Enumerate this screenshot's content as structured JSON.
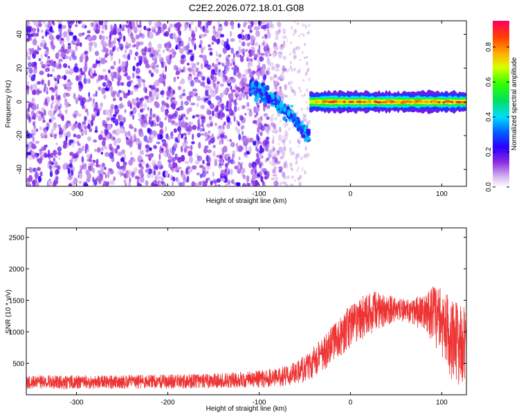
{
  "figure_title": "C2E2.2026.072.18.01.G08",
  "colors": {
    "snr_line": "#ee3333",
    "axis": "#000000",
    "background": "#ffffff"
  },
  "chart_data": [
    {
      "type": "heatmap",
      "title": "C2E2.2026.072.18.01.G08",
      "xlabel": "Height of straight line (km)",
      "ylabel": "Frequency (Hz)",
      "xlim": [
        -355,
        127
      ],
      "ylim": [
        -50,
        48
      ],
      "xticks": [
        -300,
        -200,
        -100,
        0,
        100
      ],
      "xtick_labels": [
        "-300",
        "-200",
        "-100",
        "0",
        "100"
      ],
      "yticks": [
        -40,
        -20,
        0,
        20,
        40
      ],
      "ytick_labels": [
        "-40",
        "-20",
        "0",
        "20",
        "40"
      ],
      "colorbar": {
        "label": "Normalized spectral amplitude",
        "range": [
          0,
          0.95
        ],
        "ticks": [
          0.0,
          0.2,
          0.4,
          0.6,
          0.8
        ],
        "tick_labels": [
          "0.0",
          "0.2",
          "0.4",
          "0.6",
          "0.8"
        ]
      },
      "regions": [
        {
          "name": "noise",
          "x_range": [
            -355,
            -70
          ],
          "frequency_range": [
            -50,
            48
          ],
          "amplitude": 0.12
        },
        {
          "name": "sparse-noise",
          "x_range": [
            -70,
            -45
          ],
          "frequency_range": [
            -50,
            48
          ],
          "amplitude": 0.03
        },
        {
          "name": "transition",
          "x_range": [
            -110,
            -45
          ],
          "frequency_start": 8,
          "frequency_end": -22,
          "amplitude": 0.3
        },
        {
          "name": "carrier",
          "x_range": [
            -45,
            127
          ],
          "frequency": 0,
          "amplitude": 0.9
        }
      ]
    },
    {
      "type": "line",
      "xlabel": "Height of straight line (km)",
      "ylabel": "SNR (10 * v/v)",
      "xlim": [
        -355,
        127
      ],
      "ylim": [
        0,
        2650
      ],
      "xticks": [
        -300,
        -200,
        -100,
        0,
        100
      ],
      "xtick_labels": [
        "-300",
        "-200",
        "-100",
        "0",
        "100"
      ],
      "yticks": [
        500,
        1000,
        1500,
        2000,
        2500
      ],
      "ytick_labels": [
        "500",
        "1000",
        "1500",
        "2000",
        "2500"
      ],
      "series": [
        {
          "name": "SNR",
          "envelope": {
            "x": [
              -355,
              -300,
              -250,
              -200,
              -150,
              -110,
              -80,
              -60,
              -50,
              -40,
              -30,
              -20,
              -10,
              0,
              10,
              20,
              30,
              40,
              50,
              60,
              70,
              80,
              90,
              100,
              110,
              120,
              127
            ],
            "mean": [
              200,
              200,
              205,
              210,
              220,
              240,
              270,
              330,
              420,
              520,
              650,
              800,
              950,
              1100,
              1200,
              1280,
              1330,
              1350,
              1350,
              1340,
              1320,
              1300,
              1280,
              1150,
              900,
              800,
              900
            ],
            "spread": [
              220,
              220,
              220,
              230,
              240,
              260,
              300,
              380,
              450,
              500,
              550,
              600,
              650,
              700,
              700,
              700,
              650,
              500,
              400,
              350,
              450,
              600,
              900,
              1100,
              1300,
              1400,
              1300
            ]
          }
        }
      ]
    }
  ]
}
